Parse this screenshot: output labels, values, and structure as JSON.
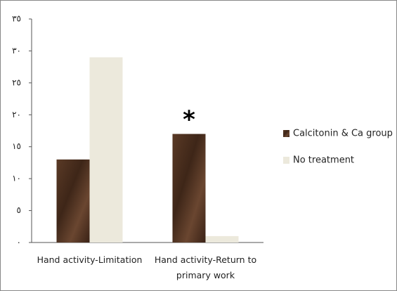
{
  "chart_data": {
    "type": "bar",
    "categories": [
      "Hand activity-Limitation",
      "Hand activity-Return to primary work"
    ],
    "series": [
      {
        "name": "Calcitonin & Ca group",
        "color": "#4d3020",
        "values": [
          13,
          17
        ]
      },
      {
        "name": "No treatment",
        "color": "#ece9dc",
        "values": [
          29,
          1
        ]
      }
    ],
    "ylim": [
      0,
      35
    ],
    "yticks": [
      {
        "value": 0,
        "label": "٠"
      },
      {
        "value": 5,
        "label": "٥"
      },
      {
        "value": 10,
        "label": "١٠"
      },
      {
        "value": 15,
        "label": "١٥"
      },
      {
        "value": 20,
        "label": "٢٠"
      },
      {
        "value": 25,
        "label": "٢٥"
      },
      {
        "value": 30,
        "label": "٣٠"
      },
      {
        "value": 35,
        "label": "٣٥"
      }
    ],
    "annotation": "*",
    "legend": "right"
  }
}
